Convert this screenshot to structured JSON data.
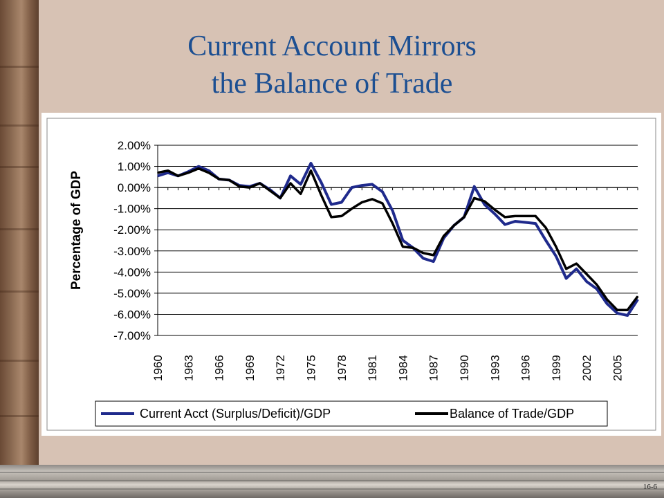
{
  "slide": {
    "title_line1": "Current Account Mirrors",
    "title_line2": "the Balance of Trade",
    "page_number": "16-6"
  },
  "colors": {
    "title": "#1c4f92",
    "current_account": "#1f2a8c",
    "balance_of_trade": "#000000",
    "background": "#d7c2b4"
  },
  "chart_data": {
    "type": "line",
    "title": "",
    "xlabel": "",
    "ylabel": "Percentage of GDP",
    "ylim": [
      -7,
      2
    ],
    "y_ticks": [
      "2.00%",
      "1.00%",
      "0.00%",
      "-1.00%",
      "-2.00%",
      "-3.00%",
      "-4.00%",
      "-5.00%",
      "-6.00%",
      "-7.00%"
    ],
    "y_tick_values": [
      2,
      1,
      0,
      -1,
      -2,
      -3,
      -4,
      -5,
      -6,
      -7
    ],
    "x_tick_labels": [
      "1960",
      "1963",
      "1966",
      "1969",
      "1972",
      "1975",
      "1978",
      "1981",
      "1984",
      "1987",
      "1990",
      "1993",
      "1996",
      "1999",
      "2002",
      "2005"
    ],
    "grid": "horizontal",
    "legend_position": "bottom",
    "x": [
      1960,
      1961,
      1962,
      1963,
      1964,
      1965,
      1966,
      1967,
      1968,
      1969,
      1970,
      1971,
      1972,
      1973,
      1974,
      1975,
      1976,
      1977,
      1978,
      1979,
      1980,
      1981,
      1982,
      1983,
      1984,
      1985,
      1986,
      1987,
      1988,
      1989,
      1990,
      1991,
      1992,
      1993,
      1994,
      1995,
      1996,
      1997,
      1998,
      1999,
      2000,
      2001,
      2002,
      2003,
      2004,
      2005,
      2006,
      2007
    ],
    "series": [
      {
        "name": "Current Acct (Surplus/Deficit)/GDP",
        "color": "#1f2a8c",
        "values": [
          0.55,
          0.7,
          0.55,
          0.75,
          1.0,
          0.8,
          0.4,
          0.35,
          0.1,
          0.05,
          0.2,
          -0.1,
          -0.5,
          0.55,
          0.15,
          1.15,
          0.25,
          -0.8,
          -0.7,
          0.0,
          0.1,
          0.15,
          -0.2,
          -1.1,
          -2.5,
          -2.85,
          -3.35,
          -3.5,
          -2.4,
          -1.8,
          -1.4,
          0.05,
          -0.8,
          -1.25,
          -1.75,
          -1.6,
          -1.65,
          -1.7,
          -2.5,
          -3.25,
          -4.3,
          -3.85,
          -4.45,
          -4.8,
          -5.5,
          -5.95,
          -6.05,
          -5.3
        ]
      },
      {
        "name": "Balance of Trade/GDP",
        "color": "#000000",
        "values": [
          0.7,
          0.8,
          0.55,
          0.7,
          0.9,
          0.7,
          0.4,
          0.35,
          0.05,
          0.0,
          0.2,
          -0.15,
          -0.5,
          0.2,
          -0.3,
          0.8,
          -0.35,
          -1.4,
          -1.35,
          -1.0,
          -0.7,
          -0.55,
          -0.75,
          -1.7,
          -2.8,
          -2.85,
          -3.1,
          -3.2,
          -2.3,
          -1.8,
          -1.4,
          -0.5,
          -0.65,
          -1.05,
          -1.4,
          -1.35,
          -1.35,
          -1.35,
          -1.9,
          -2.8,
          -3.85,
          -3.6,
          -4.1,
          -4.6,
          -5.3,
          -5.8,
          -5.8,
          -5.15
        ]
      }
    ]
  }
}
